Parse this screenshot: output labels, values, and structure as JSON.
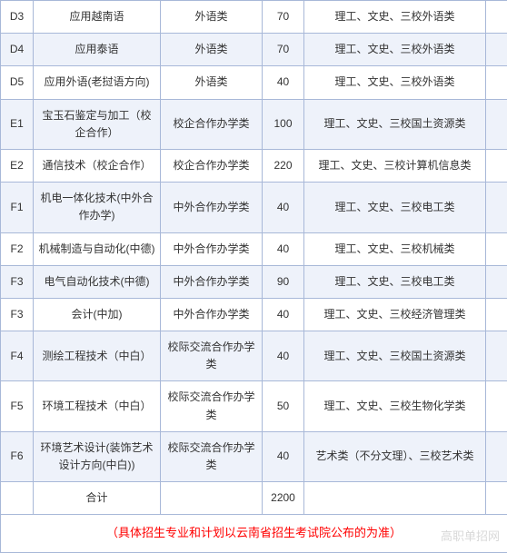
{
  "colors": {
    "border": "#a8b8d8",
    "row_odd_bg": "#ffffff",
    "row_even_bg": "#eef2fa",
    "text": "#333333",
    "note_text": "#ff0000",
    "watermark": "#d8d8d8"
  },
  "columns": {
    "code_width": 36,
    "name_width": 140,
    "cat_width": 112,
    "num_width": 46,
    "desc_width": 200,
    "extra_width": 24
  },
  "rows": [
    {
      "code": "D3",
      "name": "应用越南语",
      "category": "外语类",
      "num": "70",
      "desc": "理工、文史、三校外语类"
    },
    {
      "code": "D4",
      "name": "应用泰语",
      "category": "外语类",
      "num": "70",
      "desc": "理工、文史、三校外语类"
    },
    {
      "code": "D5",
      "name": "应用外语(老挝语方向)",
      "category": "外语类",
      "num": "40",
      "desc": "理工、文史、三校外语类"
    },
    {
      "code": "E1",
      "name": "宝玉石鉴定与加工（校企合作）",
      "category": "校企合作办学类",
      "num": "100",
      "desc": "理工、文史、三校国土资源类"
    },
    {
      "code": "E2",
      "name": "通信技术（校企合作）",
      "category": "校企合作办学类",
      "num": "220",
      "desc": "理工、文史、三校计算机信息类"
    },
    {
      "code": "F1",
      "name": "机电一体化技术(中外合作办学)",
      "category": "中外合作办学类",
      "num": "40",
      "desc": "理工、文史、三校电工类"
    },
    {
      "code": "F2",
      "name": "机械制造与自动化(中德)",
      "category": "中外合作办学类",
      "num": "40",
      "desc": "理工、文史、三校机械类"
    },
    {
      "code": "F3",
      "name": "电气自动化技术(中德)",
      "category": "中外合作办学类",
      "num": "90",
      "desc": "理工、文史、三校电工类"
    },
    {
      "code": "F3",
      "name": "会计(中加)",
      "category": "中外合作办学类",
      "num": "40",
      "desc": "理工、文史、三校经济管理类"
    },
    {
      "code": "F4",
      "name": "测绘工程技术（中白）",
      "category": "校际交流合作办学类",
      "num": "40",
      "desc": "理工、文史、三校国土资源类"
    },
    {
      "code": "F5",
      "name": "环境工程技术（中白）",
      "category": "校际交流合作办学类",
      "num": "50",
      "desc": "理工、文史、三校生物化学类"
    },
    {
      "code": "F6",
      "name": "环境艺术设计(装饰艺术设计方向(中白))",
      "category": "校际交流合作办学类",
      "num": "40",
      "desc": "艺术类（不分文理）、三校艺术类"
    }
  ],
  "total": {
    "label": "合计",
    "value": "2200"
  },
  "note": "（具体招生专业和计划以云南省招生考试院公布的为准）",
  "watermark": "高职单招网"
}
